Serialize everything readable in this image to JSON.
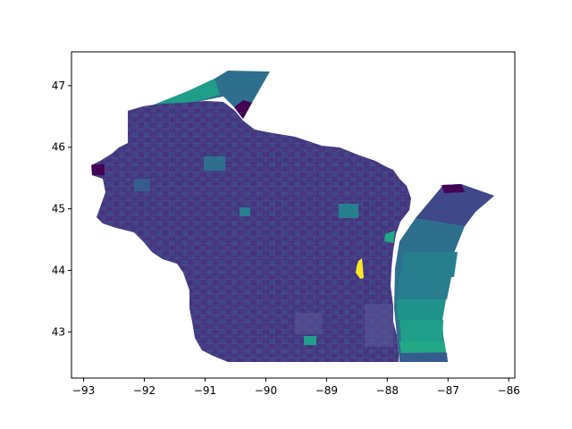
{
  "figure": {
    "title": "",
    "xlabel": "",
    "ylabel": ""
  },
  "chart_data": {
    "type": "choropleth-map",
    "region": "Wisconsin",
    "xlim": [
      -93.2,
      -85.9
    ],
    "ylim": [
      42.25,
      47.55
    ],
    "x_ticks": [
      -93,
      -92,
      -91,
      -90,
      -89,
      -88,
      -87,
      -86
    ],
    "y_ticks": [
      43,
      44,
      45,
      46,
      47
    ],
    "x_tick_labels": [
      "−93",
      "−92",
      "−91",
      "−90",
      "−89",
      "−88",
      "−87",
      "−86"
    ],
    "y_tick_labels": [
      "43",
      "44",
      "45",
      "46",
      "47"
    ],
    "colormap": "viridis",
    "colors": {
      "low": "#440154",
      "dark_purple": "#3b1f66",
      "purple": "#46337e",
      "indigo": "#3f4889",
      "blue": "#365c8d",
      "teal_blue": "#2e6f8e",
      "teal": "#277f8e",
      "green_teal": "#1f9e89",
      "high": "#fde725"
    },
    "grid": false,
    "legend": "none"
  }
}
